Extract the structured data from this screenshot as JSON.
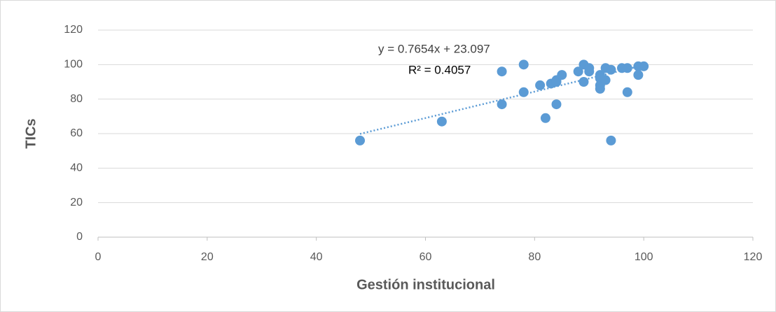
{
  "chart_data": {
    "type": "scatter",
    "x_label": "Gestión institucional",
    "y_label": "TICs",
    "series": [
      {
        "name": "TICs",
        "color": "#5b9bd5",
        "x": [
          48,
          63,
          74,
          74,
          78,
          78,
          81,
          82,
          83,
          84,
          84,
          84,
          85,
          88,
          89,
          89,
          90,
          90,
          92,
          92,
          92,
          92,
          93,
          93,
          94,
          94,
          96,
          97,
          97,
          99,
          99,
          100
        ],
        "values": [
          56,
          67,
          96,
          77,
          100,
          84,
          88,
          69,
          89,
          90,
          77,
          91,
          94,
          96,
          100,
          90,
          98,
          96,
          94,
          92,
          88,
          86,
          98,
          91,
          97,
          56,
          98,
          98,
          84,
          99,
          94,
          99
        ]
      }
    ],
    "trendline": {
      "slope": 0.7654,
      "intercept": 23.097,
      "color": "#5b9bd5",
      "label": "y = 0.7654x + 23.097",
      "r2_label": "R² = 0.4057"
    },
    "xlim": [
      0,
      120
    ],
    "xticks": [
      0,
      20,
      40,
      60,
      80,
      100,
      120
    ],
    "ylim": [
      0,
      120
    ],
    "yticks": [
      0,
      20,
      40,
      60,
      80,
      100,
      120
    ],
    "grid": true
  }
}
